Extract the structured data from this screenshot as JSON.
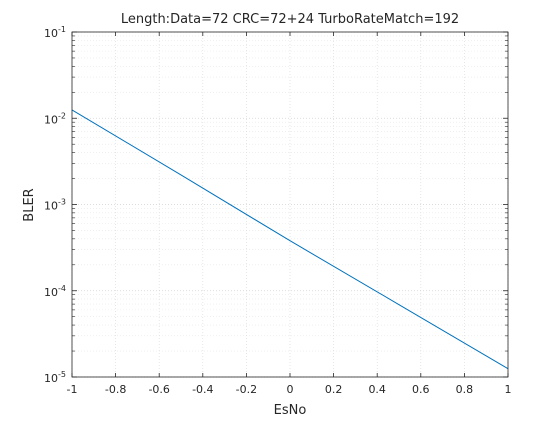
{
  "chart_data": {
    "type": "line",
    "title": "Length:Data=72 CRC=72+24 TurboRateMatch=192",
    "xlabel": "EsNo",
    "ylabel": "BLER",
    "xlim": [
      -1,
      1
    ],
    "ylim": [
      1e-05,
      0.1
    ],
    "yscale": "log",
    "grid": true,
    "minor_grid": true,
    "box": true,
    "x_ticks": [
      "-1",
      "-0.8",
      "-0.6",
      "-0.4",
      "-0.2",
      "0",
      "0.2",
      "0.4",
      "0.6",
      "0.8",
      "1"
    ],
    "y_ticks": [
      {
        "base": "10",
        "exp": "-5"
      },
      {
        "base": "10",
        "exp": "-4"
      },
      {
        "base": "10",
        "exp": "-3"
      },
      {
        "base": "10",
        "exp": "-2"
      },
      {
        "base": "10",
        "exp": "-1"
      }
    ],
    "series": [
      {
        "color": "#0072BD",
        "x": [
          -1,
          -0.5,
          0,
          0.5,
          1
        ],
        "y": [
          0.0125,
          0.0022,
          0.00038,
          6.9e-05,
          1.25e-05
        ]
      }
    ]
  }
}
